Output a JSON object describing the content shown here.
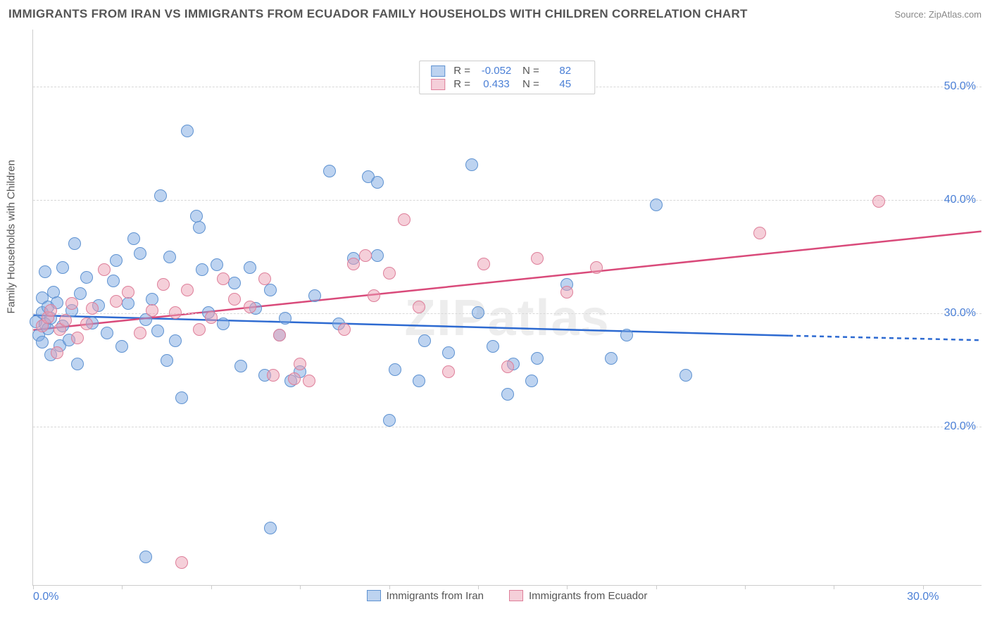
{
  "title": "IMMIGRANTS FROM IRAN VS IMMIGRANTS FROM ECUADOR FAMILY HOUSEHOLDS WITH CHILDREN CORRELATION CHART",
  "source": "Source: ZipAtlas.com",
  "watermark": "ZIPatlas",
  "y_axis_title": "Family Households with Children",
  "chart": {
    "type": "scatter",
    "background_color": "#ffffff",
    "grid_color": "#d8d8d8",
    "border_color": "#cccccc",
    "xlim": [
      0,
      32
    ],
    "ylim": [
      6,
      55
    ],
    "y_ticks": [
      20.0,
      30.0,
      40.0,
      50.0
    ],
    "y_tick_labels": [
      "20.0%",
      "30.0%",
      "40.0%",
      "50.0%"
    ],
    "x_ticks": [
      0,
      3.0,
      6.0,
      9.0,
      12.0,
      15.0,
      18.0,
      21.0,
      24.0,
      27.0,
      30.0
    ],
    "x_tick_labels_show": {
      "0": "0.0%",
      "30": "30.0%"
    },
    "marker_radius": 9,
    "marker_stroke_width": 1,
    "text_color": "#555555",
    "tick_label_color": "#4a7fd6",
    "tick_label_fontsize": 16,
    "title_fontsize": 17,
    "axis_title_fontsize": 15,
    "watermark_fontsize": 72,
    "watermark_color": "rgba(136,136,136,0.15)"
  },
  "series": [
    {
      "name": "Immigrants from Iran",
      "fill": "rgba(123,168,226,0.5)",
      "stroke": "#5e92d1",
      "line_color": "#2d6ad1",
      "line_width": 2.5,
      "R": "-0.052",
      "N": "82",
      "trend": {
        "x0": 0,
        "y0": 29.8,
        "x1": 25.5,
        "y1": 28.0,
        "ext_x1": 32,
        "ext_y1": 27.6
      },
      "points": [
        [
          0.1,
          29.2
        ],
        [
          0.2,
          28.0
        ],
        [
          0.3,
          30.0
        ],
        [
          0.3,
          27.4
        ],
        [
          0.3,
          31.3
        ],
        [
          0.4,
          29.0
        ],
        [
          0.4,
          33.6
        ],
        [
          0.5,
          28.6
        ],
        [
          0.5,
          30.5
        ],
        [
          0.6,
          29.5
        ],
        [
          0.6,
          26.3
        ],
        [
          0.7,
          31.8
        ],
        [
          0.8,
          30.9
        ],
        [
          0.9,
          27.1
        ],
        [
          1.0,
          34.0
        ],
        [
          1.0,
          28.8
        ],
        [
          1.2,
          27.6
        ],
        [
          1.3,
          30.2
        ],
        [
          1.4,
          36.1
        ],
        [
          1.5,
          25.5
        ],
        [
          1.6,
          31.7
        ],
        [
          1.8,
          33.1
        ],
        [
          2.0,
          29.1
        ],
        [
          2.2,
          30.6
        ],
        [
          2.5,
          28.2
        ],
        [
          2.7,
          32.8
        ],
        [
          2.8,
          34.6
        ],
        [
          3.0,
          27.0
        ],
        [
          3.2,
          30.8
        ],
        [
          3.4,
          36.5
        ],
        [
          3.6,
          35.2
        ],
        [
          3.8,
          29.4
        ],
        [
          4.0,
          31.2
        ],
        [
          4.2,
          28.4
        ],
        [
          4.3,
          40.3
        ],
        [
          4.5,
          25.8
        ],
        [
          4.6,
          34.9
        ],
        [
          4.8,
          27.5
        ],
        [
          5.0,
          22.5
        ],
        [
          5.2,
          46.0
        ],
        [
          5.5,
          38.5
        ],
        [
          5.6,
          37.5
        ],
        [
          5.7,
          33.8
        ],
        [
          5.9,
          30.0
        ],
        [
          6.2,
          34.2
        ],
        [
          6.4,
          29.0
        ],
        [
          6.8,
          32.6
        ],
        [
          7.0,
          25.3
        ],
        [
          7.3,
          34.0
        ],
        [
          7.5,
          30.4
        ],
        [
          7.8,
          24.5
        ],
        [
          8.0,
          11.0
        ],
        [
          8.0,
          32.0
        ],
        [
          8.3,
          28.0
        ],
        [
          8.5,
          29.5
        ],
        [
          8.7,
          24.0
        ],
        [
          9.0,
          24.8
        ],
        [
          9.5,
          31.5
        ],
        [
          10.0,
          42.5
        ],
        [
          10.3,
          29.0
        ],
        [
          10.8,
          34.8
        ],
        [
          11.3,
          42.0
        ],
        [
          11.6,
          41.5
        ],
        [
          11.6,
          35.0
        ],
        [
          12.0,
          20.5
        ],
        [
          12.2,
          25.0
        ],
        [
          13.0,
          24.0
        ],
        [
          13.2,
          27.5
        ],
        [
          14.0,
          26.5
        ],
        [
          14.8,
          43.0
        ],
        [
          15.0,
          30.0
        ],
        [
          15.5,
          27.0
        ],
        [
          16.0,
          22.8
        ],
        [
          16.2,
          25.5
        ],
        [
          16.8,
          24.0
        ],
        [
          17.0,
          26.0
        ],
        [
          18.0,
          32.5
        ],
        [
          19.5,
          26.0
        ],
        [
          20.0,
          28.0
        ],
        [
          21.0,
          39.5
        ],
        [
          22.0,
          24.5
        ],
        [
          3.8,
          8.5
        ]
      ]
    },
    {
      "name": "Immigrants from Ecuador",
      "fill": "rgba(236,160,180,0.5)",
      "stroke": "#de7f9a",
      "line_color": "#d94a7a",
      "line_width": 2.5,
      "R": "0.433",
      "N": "45",
      "trend": {
        "x0": 0,
        "y0": 28.5,
        "x1": 32,
        "y1": 37.2
      },
      "points": [
        [
          0.3,
          28.8
        ],
        [
          0.5,
          29.6
        ],
        [
          0.6,
          30.2
        ],
        [
          0.8,
          26.5
        ],
        [
          0.9,
          28.5
        ],
        [
          1.1,
          29.3
        ],
        [
          1.3,
          30.8
        ],
        [
          1.5,
          27.8
        ],
        [
          1.8,
          29.0
        ],
        [
          2.0,
          30.4
        ],
        [
          2.4,
          33.8
        ],
        [
          2.8,
          31.0
        ],
        [
          3.2,
          31.8
        ],
        [
          3.6,
          28.2
        ],
        [
          4.0,
          30.2
        ],
        [
          4.4,
          32.5
        ],
        [
          4.8,
          30.0
        ],
        [
          5.2,
          32.0
        ],
        [
          5.6,
          28.5
        ],
        [
          6.0,
          29.6
        ],
        [
          6.4,
          33.0
        ],
        [
          6.8,
          31.2
        ],
        [
          7.3,
          30.5
        ],
        [
          7.8,
          33.0
        ],
        [
          8.1,
          24.5
        ],
        [
          8.3,
          28.0
        ],
        [
          8.8,
          24.2
        ],
        [
          9.0,
          25.5
        ],
        [
          9.3,
          24.0
        ],
        [
          10.5,
          28.5
        ],
        [
          10.8,
          34.3
        ],
        [
          11.2,
          35.0
        ],
        [
          11.5,
          31.5
        ],
        [
          12.0,
          33.5
        ],
        [
          12.5,
          38.2
        ],
        [
          13.0,
          30.5
        ],
        [
          14.0,
          24.8
        ],
        [
          15.2,
          34.3
        ],
        [
          16.0,
          25.2
        ],
        [
          17.0,
          34.8
        ],
        [
          18.0,
          31.8
        ],
        [
          19.0,
          34.0
        ],
        [
          24.5,
          37.0
        ],
        [
          28.5,
          39.8
        ],
        [
          5.0,
          8.0
        ]
      ]
    }
  ],
  "legend_top": {
    "r_label": "R =",
    "n_label": "N ="
  },
  "legend_bottom": {
    "items": [
      "Immigrants from Iran",
      "Immigrants from Ecuador"
    ]
  }
}
